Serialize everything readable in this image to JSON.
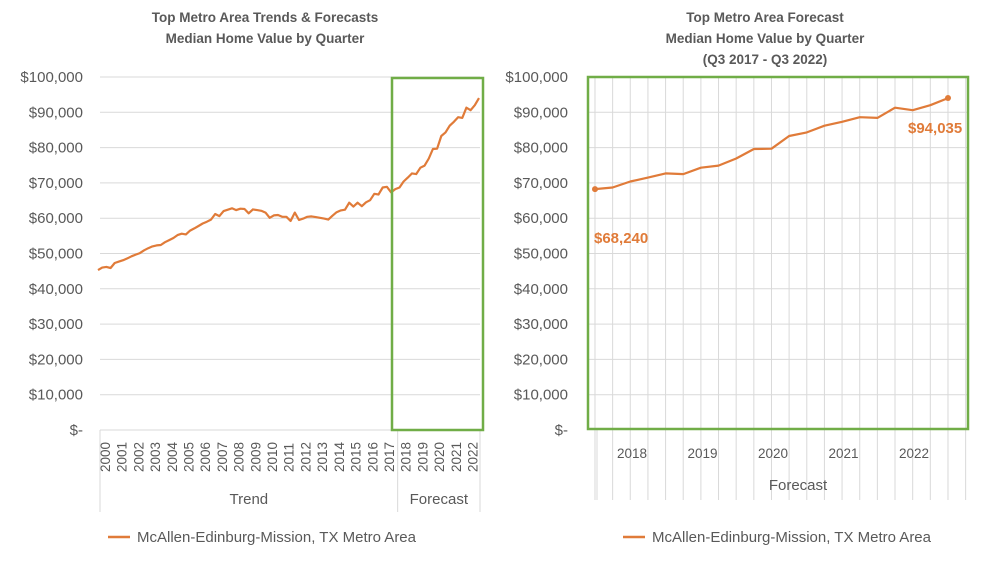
{
  "colors": {
    "series": "#E07B39",
    "highlight": "#70AD47",
    "grid": "#D9D9D9",
    "text": "#595959"
  },
  "chart_data": [
    {
      "type": "line",
      "title": [
        "Top Metro Area Trends & Forecasts",
        "Median Home Value by Quarter"
      ],
      "xlabel": "",
      "ylabel": "",
      "ylim": [
        0,
        100000
      ],
      "yticks": [
        0,
        10000,
        20000,
        30000,
        40000,
        50000,
        60000,
        70000,
        80000,
        90000,
        100000
      ],
      "ytick_labels": [
        "$-",
        "$10,000",
        "$20,000",
        "$30,000",
        "$40,000",
        "$50,000",
        "$60,000",
        "$70,000",
        "$80,000",
        "$90,000",
        "$100,000"
      ],
      "categories": [
        "2000",
        "2001",
        "2002",
        "2003",
        "2004",
        "2005",
        "2006",
        "2007",
        "2008",
        "2009",
        "2010",
        "2011",
        "2012",
        "2013",
        "2014",
        "2015",
        "2016",
        "2017",
        "2018",
        "2019",
        "2020",
        "2021",
        "2022"
      ],
      "groups": [
        {
          "label": "Trend",
          "from": "2000",
          "to": "2017"
        },
        {
          "label": "Forecast",
          "from": "2018",
          "to": "2022"
        }
      ],
      "highlight": "Forecast region (Q3 2017 - Q3 2022) boxed in green",
      "grid": true,
      "legend": "bottom-left",
      "series": [
        {
          "name": "McAllen-Edinburg-Mission, TX Metro Area",
          "frequency": "quarterly, Q1 2000 - Q3 2022",
          "values": [
            45300,
            46000,
            46200,
            45900,
            47300,
            47700,
            48100,
            48600,
            49200,
            49700,
            50100,
            50900,
            51500,
            52000,
            52300,
            52400,
            53200,
            53800,
            54400,
            55200,
            55600,
            55400,
            56500,
            57100,
            57800,
            58500,
            59000,
            59600,
            61200,
            60600,
            62000,
            62400,
            62800,
            62300,
            62700,
            62600,
            61400,
            62500,
            62300,
            62100,
            61600,
            60100,
            60800,
            60900,
            60400,
            60400,
            59200,
            61600,
            59500,
            59900,
            60400,
            60500,
            60300,
            60100,
            59900,
            59600,
            60700,
            61700,
            62200,
            62400,
            64400,
            63300,
            64400,
            63400,
            64500,
            65100,
            66900,
            66700,
            68700,
            68900,
            67300,
            68240,
            68700,
            70400,
            71500,
            72700,
            72500,
            74300,
            74900,
            76900,
            79600,
            79700,
            83300,
            84300,
            86200,
            87300,
            88600,
            88400,
            91300,
            90600,
            92000,
            94035
          ]
        }
      ]
    },
    {
      "type": "line",
      "title": [
        "Top Metro Area Forecast",
        "Median Home Value by Quarter",
        "(Q3 2017 - Q3 2022)"
      ],
      "xlabel": "Forecast",
      "ylabel": "",
      "ylim": [
        0,
        100000
      ],
      "yticks": [
        0,
        10000,
        20000,
        30000,
        40000,
        50000,
        60000,
        70000,
        80000,
        90000,
        100000
      ],
      "ytick_labels": [
        "$-",
        "$10,000",
        "$20,000",
        "$30,000",
        "$40,000",
        "$50,000",
        "$60,000",
        "$70,000",
        "$80,000",
        "$90,000",
        "$100,000"
      ],
      "categories": [
        "2018",
        "2019",
        "2020",
        "2021",
        "2022"
      ],
      "grid": true,
      "legend": "bottom",
      "annotations": [
        {
          "point": "first",
          "label": "$68,240"
        },
        {
          "point": "last",
          "label": "$94,035"
        }
      ],
      "series": [
        {
          "name": "McAllen-Edinburg-Mission, TX Metro Area",
          "frequency": "quarterly, Q3 2017 - Q3 2022",
          "values": [
            68240,
            68700,
            70400,
            71500,
            72700,
            72500,
            74300,
            74900,
            76900,
            79600,
            79700,
            83300,
            84300,
            86200,
            87300,
            88600,
            88400,
            91300,
            90600,
            92000,
            94035
          ]
        }
      ]
    }
  ]
}
